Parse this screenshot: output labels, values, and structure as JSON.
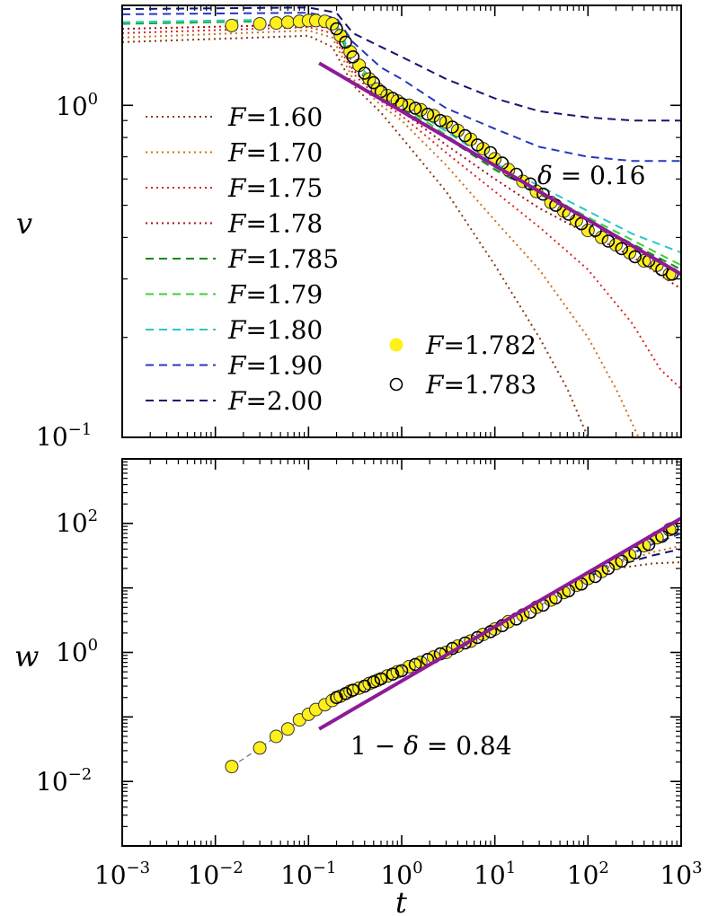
{
  "chart_data": [
    {
      "type": "line",
      "panel": "top",
      "xscale": "log",
      "yscale": "log",
      "xlim": [
        0.001,
        1000
      ],
      "ylim": [
        0.1,
        2.0
      ],
      "xlabel": "",
      "ylabel": "v",
      "yticks": [
        {
          "base": "10",
          "exp": "0",
          "value": 1
        },
        {
          "base": "10",
          "exp": "−1",
          "value": 0.1
        }
      ],
      "series": [
        {
          "name": "F=1.60",
          "label_var": "F",
          "label_val": "=1.60",
          "color": "#8b3a0f",
          "style": "dotted",
          "t": [
            0.001,
            0.1,
            0.18,
            0.3,
            0.6,
            1,
            3,
            10,
            30,
            60,
            100
          ],
          "v": [
            1.55,
            1.62,
            1.5,
            1.15,
            0.95,
            0.8,
            0.55,
            0.33,
            0.2,
            0.14,
            0.1
          ]
        },
        {
          "name": "F=1.70",
          "label_var": "F",
          "label_val": "=1.70",
          "color": "#d07018",
          "style": "dotted",
          "t": [
            0.001,
            0.1,
            0.18,
            0.3,
            0.6,
            1,
            3,
            10,
            30,
            100,
            200,
            350
          ],
          "v": [
            1.6,
            1.68,
            1.6,
            1.2,
            1.0,
            0.9,
            0.66,
            0.45,
            0.32,
            0.2,
            0.14,
            0.1
          ]
        },
        {
          "name": "F=1.75",
          "label_var": "F",
          "label_val": "=1.75",
          "color": "#e02020",
          "style": "dotted",
          "t": [
            0.001,
            0.1,
            0.18,
            0.3,
            0.6,
            1,
            3,
            10,
            30,
            100,
            300,
            600,
            1000
          ],
          "v": [
            1.65,
            1.72,
            1.65,
            1.25,
            1.03,
            0.93,
            0.72,
            0.55,
            0.43,
            0.32,
            0.22,
            0.16,
            0.14
          ]
        },
        {
          "name": "F=1.78",
          "label_var": "F",
          "label_val": "=1.78",
          "color": "#a01018",
          "style": "dotted",
          "t": [
            0.001,
            0.1,
            0.18,
            0.3,
            0.6,
            1,
            3,
            10,
            30,
            100,
            300,
            1000
          ],
          "v": [
            1.7,
            1.75,
            1.7,
            1.28,
            1.05,
            0.96,
            0.76,
            0.6,
            0.49,
            0.41,
            0.35,
            0.28
          ]
        },
        {
          "name": "F=1.785",
          "label_var": "F",
          "label_val": "=1.785",
          "color": "#1a8a1a",
          "style": "dashed",
          "t": [
            0.001,
            0.1,
            0.2,
            0.3,
            0.6,
            1,
            10,
            100,
            1000
          ],
          "v": [
            1.76,
            1.8,
            1.72,
            1.32,
            1.08,
            0.98,
            0.64,
            0.45,
            0.32
          ]
        },
        {
          "name": "F=1.79",
          "label_var": "F",
          "label_val": "=1.79",
          "color": "#38d038",
          "style": "dashed",
          "t": [
            0.001,
            0.1,
            0.2,
            0.3,
            0.6,
            1,
            10,
            100,
            1000
          ],
          "v": [
            1.77,
            1.81,
            1.74,
            1.35,
            1.1,
            1.0,
            0.65,
            0.46,
            0.33
          ]
        },
        {
          "name": "F=1.80",
          "label_var": "F",
          "label_val": "=1.80",
          "color": "#28c8c8",
          "style": "dashed",
          "t": [
            0.001,
            0.1,
            0.2,
            0.3,
            0.6,
            1,
            10,
            100,
            300,
            1000
          ],
          "v": [
            1.78,
            1.82,
            1.76,
            1.38,
            1.12,
            1.02,
            0.67,
            0.48,
            0.41,
            0.36
          ]
        },
        {
          "name": "F=1.90",
          "label_var": "F",
          "label_val": "=1.90",
          "color": "#2438c0",
          "style": "dashed",
          "t": [
            0.001,
            0.1,
            0.2,
            0.3,
            0.6,
            1,
            3,
            10,
            30,
            100,
            300,
            1000
          ],
          "v": [
            1.88,
            1.9,
            1.83,
            1.55,
            1.3,
            1.2,
            0.98,
            0.85,
            0.75,
            0.7,
            0.68,
            0.68
          ]
        },
        {
          "name": "F=2.00",
          "label_var": "F",
          "label_val": "=2.00",
          "color": "#141470",
          "style": "dashed",
          "t": [
            0.001,
            0.1,
            0.2,
            0.3,
            0.6,
            1,
            3,
            10,
            30,
            100,
            300,
            1000
          ],
          "v": [
            1.95,
            1.97,
            1.9,
            1.65,
            1.5,
            1.4,
            1.2,
            1.05,
            0.96,
            0.92,
            0.9,
            0.9
          ]
        }
      ],
      "markers": [
        {
          "name": "F=1.782",
          "label_var": "F",
          "label_val": "=1.782",
          "face": "#ffef1a",
          "edge": "#d8c800",
          "t": [
            0.015,
            0.03,
            0.045,
            0.06,
            0.08,
            0.1,
            0.12,
            0.15,
            0.18,
            0.22,
            0.28,
            0.35,
            0.45,
            0.55,
            0.7,
            0.9,
            1.2,
            1.6,
            2.2,
            3,
            4,
            5.5,
            7.5,
            10,
            14,
            20,
            28,
            40,
            55,
            75,
            100,
            140,
            200,
            280,
            400,
            550,
            750
          ],
          "v": [
            1.74,
            1.76,
            1.77,
            1.78,
            1.79,
            1.8,
            1.8,
            1.79,
            1.76,
            1.62,
            1.45,
            1.32,
            1.2,
            1.12,
            1.07,
            1.03,
            1.0,
            0.97,
            0.93,
            0.89,
            0.84,
            0.79,
            0.74,
            0.69,
            0.64,
            0.59,
            0.55,
            0.51,
            0.48,
            0.45,
            0.42,
            0.4,
            0.38,
            0.36,
            0.34,
            0.33,
            0.31
          ]
        },
        {
          "name": "F=1.783",
          "label_var": "F",
          "label_val": "=1.783",
          "face": "none",
          "edge": "#000000",
          "t": [
            0.2,
            0.25,
            0.3,
            0.4,
            0.5,
            0.6,
            0.8,
            1.0,
            1.4,
            1.9,
            2.6,
            3.5,
            4.8,
            6.5,
            9,
            12,
            17,
            24,
            33,
            45,
            62,
            85,
            120,
            165,
            230,
            320,
            450,
            620,
            800
          ],
          "v": [
            1.7,
            1.55,
            1.4,
            1.25,
            1.17,
            1.1,
            1.05,
            1.01,
            0.98,
            0.94,
            0.9,
            0.86,
            0.81,
            0.76,
            0.72,
            0.67,
            0.62,
            0.58,
            0.54,
            0.5,
            0.47,
            0.44,
            0.42,
            0.39,
            0.37,
            0.35,
            0.34,
            0.32,
            0.31
          ]
        }
      ],
      "fit_line": {
        "color": "#8e1a98",
        "t": [
          0.13,
          1000
        ],
        "v": [
          1.34,
          0.31
        ]
      },
      "annotations": [
        {
          "id": "delta",
          "var": "δ",
          "text": " = 0.16"
        }
      ],
      "legend": {
        "left_loc": "upper-left",
        "right_loc": "lower-center"
      }
    },
    {
      "type": "line",
      "panel": "bottom",
      "xscale": "log",
      "yscale": "log",
      "xlim": [
        0.001,
        1000
      ],
      "ylim": [
        0.001,
        1000
      ],
      "xlabel": "t",
      "ylabel": "w",
      "xticks": [
        {
          "base": "10",
          "exp": "−3",
          "value": 0.001
        },
        {
          "base": "10",
          "exp": "−2",
          "value": 0.01
        },
        {
          "base": "10",
          "exp": "−1",
          "value": 0.1
        },
        {
          "base": "10",
          "exp": "0",
          "value": 1
        },
        {
          "base": "10",
          "exp": "1",
          "value": 10
        },
        {
          "base": "10",
          "exp": "2",
          "value": 100
        },
        {
          "base": "10",
          "exp": "3",
          "value": 1000
        }
      ],
      "yticks": [
        {
          "base": "10",
          "exp": "2",
          "value": 100
        },
        {
          "base": "10",
          "exp": "0",
          "value": 1
        },
        {
          "base": "10",
          "exp": "−2",
          "value": 0.01
        }
      ],
      "series": [
        {
          "name": "F=1.60",
          "color": "#8b3a0f",
          "style": "dotted",
          "t": [
            100,
            200,
            500,
            1000
          ],
          "w": [
            14,
            20,
            24,
            25
          ]
        },
        {
          "name": "F=1.70",
          "color": "#d07018",
          "style": "dotted",
          "t": [
            100,
            200,
            500,
            1000
          ],
          "w": [
            15,
            24,
            36,
            45
          ]
        },
        {
          "name": "F=1.90",
          "color": "#2438c0",
          "style": "dashed",
          "t": [
            100,
            200,
            500,
            1000
          ],
          "w": [
            16,
            26,
            48,
            70
          ]
        },
        {
          "name": "F=2.00",
          "color": "#141470",
          "style": "dashed",
          "t": [
            100,
            200,
            500,
            1000
          ],
          "w": [
            15,
            22,
            32,
            40
          ]
        }
      ],
      "markers": [
        {
          "name": "F=1.782",
          "face": "#ffef1a",
          "edge": "#d8c800",
          "t": [
            0.015,
            0.03,
            0.045,
            0.06,
            0.08,
            0.1,
            0.12,
            0.15,
            0.18,
            0.22,
            0.28,
            0.35,
            0.45,
            0.55,
            0.7,
            0.9,
            1.2,
            1.6,
            2.2,
            3,
            4,
            5.5,
            7.5,
            10,
            14,
            20,
            28,
            40,
            55,
            75,
            100,
            140,
            200,
            280,
            400,
            550,
            750
          ],
          "w": [
            0.017,
            0.033,
            0.05,
            0.065,
            0.09,
            0.11,
            0.13,
            0.155,
            0.18,
            0.21,
            0.25,
            0.28,
            0.33,
            0.37,
            0.43,
            0.5,
            0.6,
            0.7,
            0.85,
            1.0,
            1.25,
            1.5,
            1.9,
            2.3,
            3.0,
            3.8,
            5.0,
            6.5,
            8.5,
            11,
            14,
            18,
            24,
            32,
            45,
            60,
            80
          ]
        },
        {
          "name": "F=1.783",
          "face": "none",
          "edge": "#000000",
          "t": [
            0.2,
            0.25,
            0.3,
            0.4,
            0.5,
            0.6,
            0.8,
            1.0,
            1.4,
            1.9,
            2.6,
            3.5,
            4.8,
            6.5,
            9,
            12,
            17,
            24,
            33,
            45,
            62,
            85,
            120,
            165,
            230,
            320,
            450,
            620,
            800
          ],
          "w": [
            0.2,
            0.23,
            0.26,
            0.3,
            0.35,
            0.39,
            0.46,
            0.52,
            0.65,
            0.78,
            0.95,
            1.15,
            1.4,
            1.7,
            2.1,
            2.6,
            3.3,
            4.2,
            5.4,
            7.0,
            9.0,
            11.5,
            15,
            20,
            26,
            35,
            47,
            63,
            83
          ]
        }
      ],
      "fit_line": {
        "color": "#8e1a98",
        "t": [
          0.13,
          1000
        ],
        "w": [
          0.065,
          120
        ]
      },
      "annotations": [
        {
          "id": "one-minus-delta",
          "pre": "1 − ",
          "var": "δ",
          "text": " = 0.84"
        }
      ]
    }
  ]
}
